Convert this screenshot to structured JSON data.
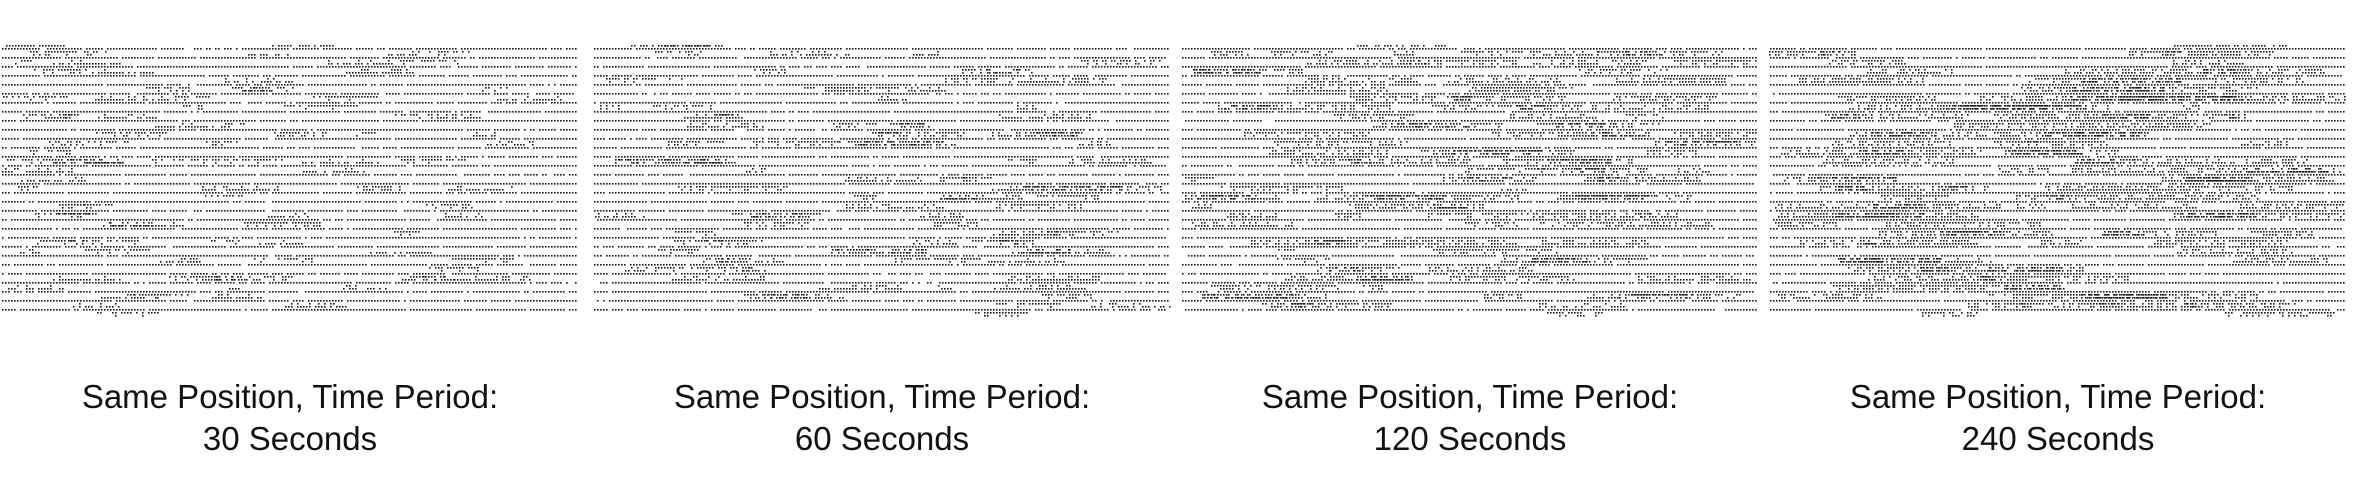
{
  "panels": [
    {
      "caption_line1": "Same Position, Time Period:",
      "caption_line2": "30 Seconds",
      "seed": 30
    },
    {
      "caption_line1": "Same Position, Time Period:",
      "caption_line2": "60 Seconds",
      "seed": 60
    },
    {
      "caption_line1": "Same Position, Time Period:",
      "caption_line2": "120 Seconds",
      "seed": 120
    },
    {
      "caption_line1": "Same Position, Time Period:",
      "caption_line2": "240 Seconds",
      "seed": 240
    }
  ],
  "colors": {
    "dots": "#1a1a1a",
    "background": "#ffffff",
    "text": "#111111"
  }
}
